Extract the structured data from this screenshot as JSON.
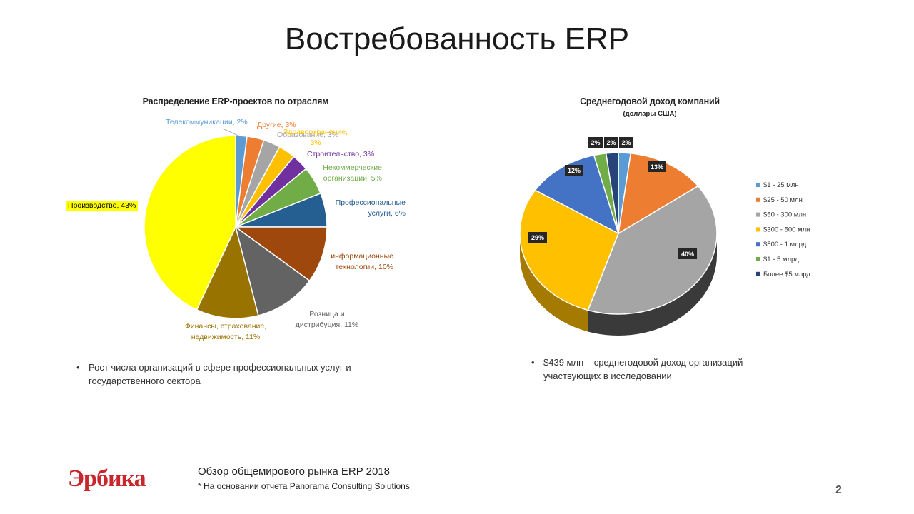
{
  "slide": {
    "title": "Востребованность ERP",
    "page_number": "2"
  },
  "chart_data": [
    {
      "type": "pie",
      "title": "Распределение ERP-проектов по отраслям",
      "categories": [
        "Телекоммуникации",
        "Другие",
        "Образование",
        "Здравоохранение",
        "Строительство",
        "Некоммерческие организации",
        "Профессиональные услуги",
        "информационные технологии",
        "Розница и дистрибуция",
        "Финансы, страхование, недвижимость",
        "Производство"
      ],
      "values": [
        2,
        3,
        3,
        3,
        3,
        5,
        6,
        10,
        11,
        11,
        43
      ],
      "colors": [
        "#5b9bd5",
        "#ed7d31",
        "#a5a5a5",
        "#ffc000",
        "#7030a0",
        "#70ad47",
        "#255e91",
        "#9e480e",
        "#636363",
        "#997300",
        "#ffff00"
      ],
      "data_labels": [
        [
          "Телекоммуникации, 2%"
        ],
        [
          "Другие, 3%"
        ],
        [
          "Образование, 3%"
        ],
        [
          "Здравоохранение,",
          "3%"
        ],
        [
          "Строительство, 3%"
        ],
        [
          "Некоммерческие",
          "организации, 5%"
        ],
        [
          "Профессиональные",
          "услуги, 6%"
        ],
        [
          "информационные",
          "технологии, 10%"
        ],
        [
          "Розница и",
          "дистрибуция, 11%"
        ],
        [
          "Финансы, страхование,",
          "недвижимость, 11%"
        ],
        [
          "Производство, 43%"
        ]
      ],
      "label_colors": [
        "#5b9bd5",
        "#ed7d31",
        "#a5a5a5",
        "#ffc000",
        "#7030a0",
        "#70ad47",
        "#255e91",
        "#9e480e",
        "#636363",
        "#997300",
        "#000000"
      ]
    },
    {
      "type": "pie",
      "title": "Среднегодовой доход компаний",
      "subtitle": "(доллары США)",
      "categories": [
        "$1 - 25 млн",
        "$25 - 50 млн",
        "$50 - 300 млн",
        "$300 - 500 млн",
        "$500 - 1 млрд",
        "$1 - 5 млрд",
        "Более $5 млрд"
      ],
      "values": [
        2,
        13,
        40,
        29,
        12,
        2,
        2
      ],
      "data_labels": [
        "2%",
        "13%",
        "40%",
        "29%",
        "12%",
        "2%",
        "2%"
      ],
      "colors": [
        "#5b9bd5",
        "#ed7d31",
        "#a5a5a5",
        "#ffc000",
        "#4472c4",
        "#70ad47",
        "#264478"
      ],
      "legend_position": "right"
    }
  ],
  "notes": {
    "left": [
      "Рост числа организаций в сфере профессиональных услуг и",
      "государственного сектора"
    ],
    "right": [
      "$439 млн – среднегодовой доход организаций",
      "участвующих в исследовании"
    ]
  },
  "footer": {
    "logo_text": "Эрбика",
    "line1": "Обзор общемирового рынка ERP 2018",
    "line2": "* На основании отчета Panorama Consulting Solutions"
  }
}
